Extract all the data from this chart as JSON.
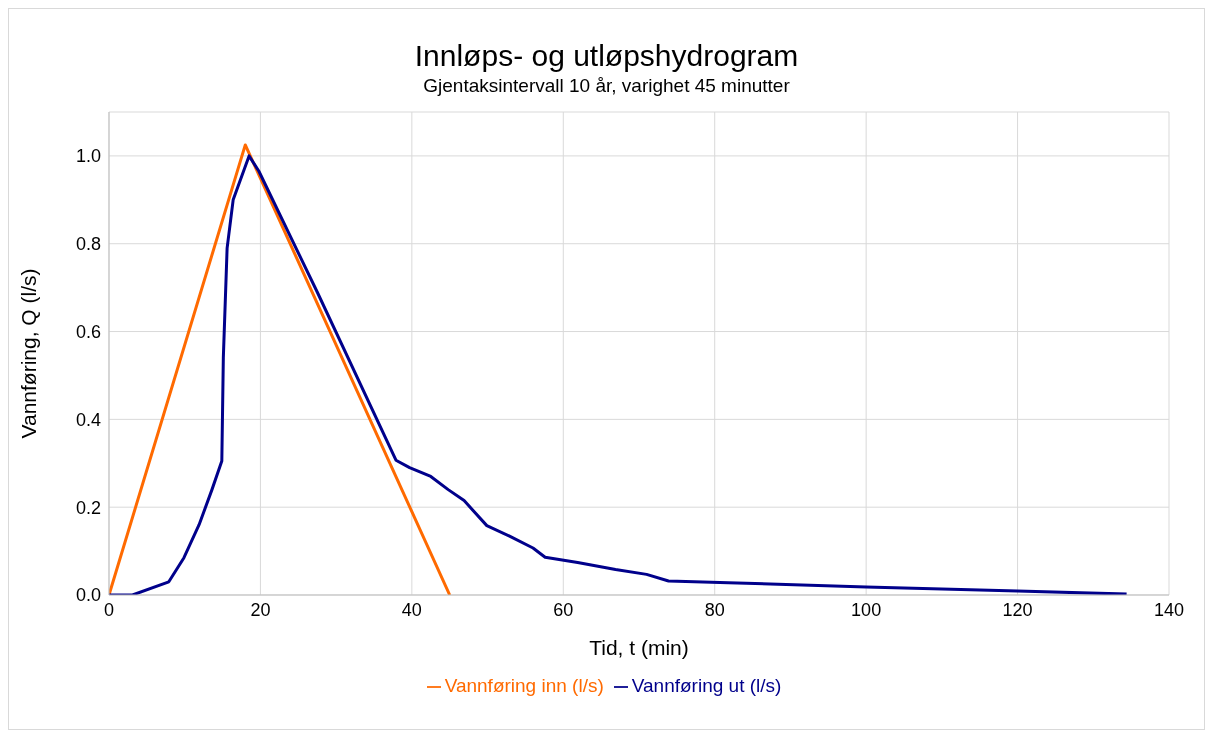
{
  "chart_data": {
    "type": "line",
    "title": "Innløps- og utløpshydrogram",
    "subtitle": "Gjentaksintervall 10 år, varighet 45 minutter",
    "xlabel": "Tid, t (min)",
    "ylabel": "Vannføring, Q (l/s)",
    "xlim": [
      0,
      140
    ],
    "xticks": [
      0,
      20,
      40,
      60,
      80,
      100,
      120,
      140
    ],
    "ylim": [
      0,
      1.1
    ],
    "yticks": [
      {
        "value": 0,
        "label": "0.0"
      },
      {
        "value": 0.2,
        "label": "0.2"
      },
      {
        "value": 0.4,
        "label": "0.4"
      },
      {
        "value": 0.6,
        "label": "0.6"
      },
      {
        "value": 0.8,
        "label": "0.8"
      },
      {
        "value": 1,
        "label": "1.0"
      }
    ],
    "grid": true,
    "legend": "bottom",
    "marker": "none",
    "line_style": "solid",
    "series": [
      {
        "name": "Vannføring inn (l/s)",
        "color": "#ff6a00",
        "x": [
          0,
          18,
          45
        ],
        "values": [
          0,
          1.025,
          0
        ]
      },
      {
        "name": "Vannføring ut (l/s)",
        "color": "#00008b",
        "x": [
          0,
          3.1,
          7.9,
          9.9,
          11.9,
          13.6,
          14.9,
          15.1,
          15.6,
          16.4,
          18.5,
          19.8,
          27.5,
          37.9,
          39.7,
          42.5,
          44.8,
          46.9,
          49.9,
          52.9,
          56,
          57.6,
          61.9,
          66.9,
          71,
          73.9,
          81.8,
          100,
          120,
          134.4
        ],
        "values": [
          0,
          0,
          0.03,
          0.085,
          0.16,
          0.24,
          0.305,
          0.54,
          0.79,
          0.9,
          1,
          0.965,
          0.69,
          0.307,
          0.29,
          0.27,
          0.24,
          0.215,
          0.158,
          0.134,
          0.107,
          0.086,
          0.074,
          0.058,
          0.047,
          0.032,
          0.028,
          0.018,
          0.009,
          0.002
        ]
      }
    ]
  }
}
